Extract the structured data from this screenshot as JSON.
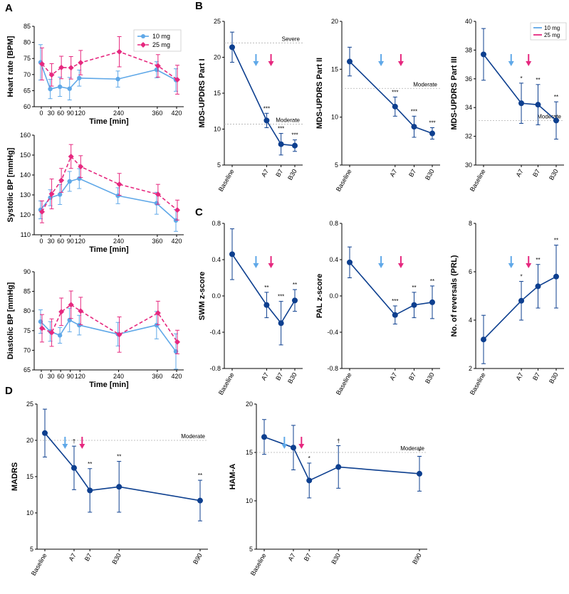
{
  "panel_letters": {
    "a": "A",
    "b": "B",
    "c": "C",
    "d": "D"
  },
  "colors": {
    "low_dose": "#5fa8e8",
    "high_dose": "#e6287f",
    "group": "#0d3f8f",
    "ref_line": "#b0b0b0"
  },
  "chart_data": [
    {
      "id": "hr",
      "type": "line",
      "ylabel": "Heart rate [BPM]",
      "xlabel": "Time [min]",
      "ylim": [
        60,
        85
      ],
      "yticks": [
        60,
        65,
        70,
        75,
        80,
        85
      ],
      "x": [
        0,
        30,
        60,
        90,
        120,
        240,
        360,
        420
      ],
      "xticks": [
        "0",
        "30",
        "60",
        "90",
        "120",
        "240",
        "360",
        "420"
      ],
      "legend": [
        "10 mg",
        "25 mg"
      ],
      "series": [
        {
          "name": "10 mg",
          "values": [
            73.8,
            65.5,
            66.2,
            65.6,
            68.9,
            68.6,
            71.5,
            68.3
          ],
          "err": [
            5.5,
            3.0,
            3.0,
            3.5,
            2.5,
            2.5,
            2.5,
            3.5
          ]
        },
        {
          "name": "25 mg",
          "values": [
            73.3,
            69.9,
            72.2,
            72.1,
            73.7,
            77.1,
            72.7,
            68.4
          ],
          "err": [
            5.0,
            3.5,
            3.5,
            3.5,
            3.8,
            4.7,
            3.5,
            4.5
          ]
        }
      ]
    },
    {
      "id": "sbp",
      "type": "line",
      "ylabel": "Systolic BP [mmHg]",
      "xlabel": "Time [min]",
      "ylim": [
        110,
        160
      ],
      "yticks": [
        110,
        120,
        130,
        140,
        150,
        160
      ],
      "x": [
        0,
        30,
        60,
        90,
        120,
        240,
        360,
        420
      ],
      "xticks": [
        "0",
        "30",
        "60",
        "90",
        "120",
        "240",
        "360",
        "420"
      ],
      "series": [
        {
          "name": "10 mg",
          "values": [
            122.5,
            128.6,
            130.2,
            136.8,
            138.2,
            129.6,
            125.8,
            117.2
          ],
          "err": [
            4.5,
            4.0,
            5.0,
            5.0,
            5.0,
            4.0,
            5.5,
            5.5
          ]
        },
        {
          "name": "25 mg",
          "values": [
            121.5,
            130.5,
            137.3,
            149.3,
            144.2,
            135.3,
            130.3,
            122.4
          ],
          "err": [
            5.5,
            7.5,
            6.0,
            6.0,
            5.5,
            5.5,
            5.0,
            5.0
          ]
        }
      ]
    },
    {
      "id": "dbp",
      "type": "line",
      "ylabel": "Diastolic BP [mmHg]",
      "xlabel": "Time [min]",
      "ylim": [
        65,
        90
      ],
      "yticks": [
        65,
        70,
        75,
        80,
        85,
        90
      ],
      "x": [
        0,
        30,
        60,
        90,
        120,
        240,
        360,
        420
      ],
      "xticks": [
        "0",
        "30",
        "60",
        "90",
        "120",
        "240",
        "360",
        "420"
      ],
      "series": [
        {
          "name": "10 mg",
          "values": [
            77.3,
            74.8,
            73.8,
            77.7,
            76.4,
            74.1,
            76.4,
            69.7
          ],
          "err": [
            3.0,
            2.5,
            2.0,
            3.0,
            2.5,
            3.0,
            3.5,
            4.5
          ]
        },
        {
          "name": "25 mg",
          "values": [
            75.6,
            74.5,
            79.8,
            81.6,
            80.0,
            74.0,
            79.5,
            72.1
          ],
          "err": [
            3.5,
            3.5,
            3.5,
            3.5,
            3.5,
            4.5,
            3.0,
            3.0
          ]
        }
      ]
    },
    {
      "id": "updrs1",
      "type": "line",
      "ylabel": "MDS-UPDRS Part I",
      "ylim": [
        5,
        25
      ],
      "yticks": [
        5,
        10,
        15,
        20,
        25
      ],
      "categories": [
        "Baseline",
        "A7",
        "B7",
        "B30"
      ],
      "series": [
        {
          "name": "Group",
          "values": [
            21.4,
            11.2,
            7.9,
            7.7
          ],
          "err": [
            2.1,
            1.0,
            1.5,
            0.8
          ]
        }
      ],
      "significance": [
        "",
        "***",
        "***",
        "***"
      ],
      "ref_lines": [
        {
          "value": 22.0,
          "label": "Severe"
        },
        {
          "value": 10.7,
          "label": "Moderate"
        }
      ]
    },
    {
      "id": "updrs2",
      "type": "line",
      "ylabel": "MDS-UPDRS Part II",
      "ylim": [
        5,
        20
      ],
      "yticks": [
        5,
        10,
        15,
        20
      ],
      "categories": [
        "Baseline",
        "A7",
        "B7",
        "B30"
      ],
      "series": [
        {
          "name": "Group",
          "values": [
            15.8,
            11.1,
            9.0,
            8.3
          ],
          "err": [
            1.5,
            1.0,
            1.1,
            0.6
          ]
        }
      ],
      "significance": [
        "",
        "***",
        "***",
        "***"
      ],
      "ref_lines": [
        {
          "value": 13.0,
          "label": "Moderate"
        }
      ]
    },
    {
      "id": "updrs3",
      "type": "line",
      "ylabel": "MDS-UPDRS Part III",
      "ylim": [
        30,
        40
      ],
      "yticks": [
        30,
        32,
        34,
        36,
        38,
        40
      ],
      "categories": [
        "Baseline",
        "A7",
        "B7",
        "B30"
      ],
      "legend": [
        "10 mg",
        "25 mg"
      ],
      "series": [
        {
          "name": "Group",
          "values": [
            37.7,
            34.3,
            34.2,
            33.1
          ],
          "err": [
            1.8,
            1.4,
            1.4,
            1.3
          ]
        }
      ],
      "significance": [
        "",
        "*",
        "**",
        "**"
      ],
      "ref_lines": [
        {
          "value": 33.1,
          "label": "Moderate"
        }
      ]
    },
    {
      "id": "swm",
      "type": "line",
      "ylabel": "SWM z-score",
      "ylim": [
        -0.8,
        0.8
      ],
      "yticks": [
        -0.8,
        -0.4,
        0.0,
        0.4,
        0.8
      ],
      "categories": [
        "Baseline",
        "A7",
        "B7",
        "B30"
      ],
      "series": [
        {
          "name": "Group",
          "values": [
            0.46,
            -0.1,
            -0.3,
            -0.05
          ],
          "err": [
            0.28,
            0.14,
            0.24,
            0.12
          ]
        }
      ],
      "significance": [
        "",
        "**",
        "***",
        "**"
      ]
    },
    {
      "id": "pal",
      "type": "line",
      "ylabel": "PAL z-score",
      "ylim": [
        -0.8,
        0.8
      ],
      "yticks": [
        -0.8,
        -0.4,
        0.0,
        0.4,
        0.8
      ],
      "categories": [
        "Baseline",
        "A7",
        "B7",
        "B30"
      ],
      "series": [
        {
          "name": "Group",
          "values": [
            0.37,
            -0.21,
            -0.1,
            -0.07
          ],
          "err": [
            0.17,
            0.1,
            0.14,
            0.18
          ]
        }
      ],
      "significance": [
        "",
        "***",
        "**",
        "**"
      ]
    },
    {
      "id": "prl",
      "type": "line",
      "ylabel": "No. of reversals (PRL)",
      "ylim": [
        2,
        8
      ],
      "yticks": [
        2,
        4,
        6,
        8
      ],
      "categories": [
        "Baseline",
        "A7",
        "B7",
        "B30"
      ],
      "series": [
        {
          "name": "Group",
          "values": [
            3.2,
            4.8,
            5.4,
            5.8
          ],
          "err": [
            1.0,
            0.8,
            0.9,
            1.3
          ]
        }
      ],
      "significance": [
        "",
        "*",
        "**",
        "**"
      ]
    },
    {
      "id": "madrs",
      "type": "line",
      "ylabel": "MADRS",
      "ylim": [
        5,
        25
      ],
      "yticks": [
        5,
        10,
        15,
        20,
        25
      ],
      "categories": [
        "Baseline",
        "A7",
        "B7",
        "B30",
        "B90"
      ],
      "x": [
        0,
        7,
        14,
        30,
        90
      ],
      "series": [
        {
          "name": "Group",
          "values": [
            21.0,
            16.2,
            13.1,
            13.6,
            11.7
          ],
          "err": [
            3.3,
            3.0,
            3.0,
            3.5,
            2.8
          ]
        }
      ],
      "significance": [
        "",
        "†",
        "**",
        "**",
        "**"
      ],
      "ref_lines": [
        {
          "value": 20.0,
          "label": "Moderate"
        }
      ]
    },
    {
      "id": "hama",
      "type": "line",
      "ylabel": "HAM-A",
      "ylim": [
        5,
        20
      ],
      "yticks": [
        5,
        10,
        15,
        20
      ],
      "categories": [
        "Baseline",
        "A7",
        "B7",
        "B30",
        "B90"
      ],
      "x": [
        0,
        7,
        14,
        30,
        90
      ],
      "series": [
        {
          "name": "Group",
          "values": [
            16.6,
            15.5,
            12.1,
            13.5,
            12.8
          ],
          "err": [
            1.8,
            2.3,
            1.8,
            2.2,
            1.8
          ]
        }
      ],
      "significance": [
        "",
        "",
        "*",
        "†",
        "*"
      ],
      "ref_lines": [
        {
          "value": 15.0,
          "label": "Moderate"
        }
      ]
    }
  ]
}
